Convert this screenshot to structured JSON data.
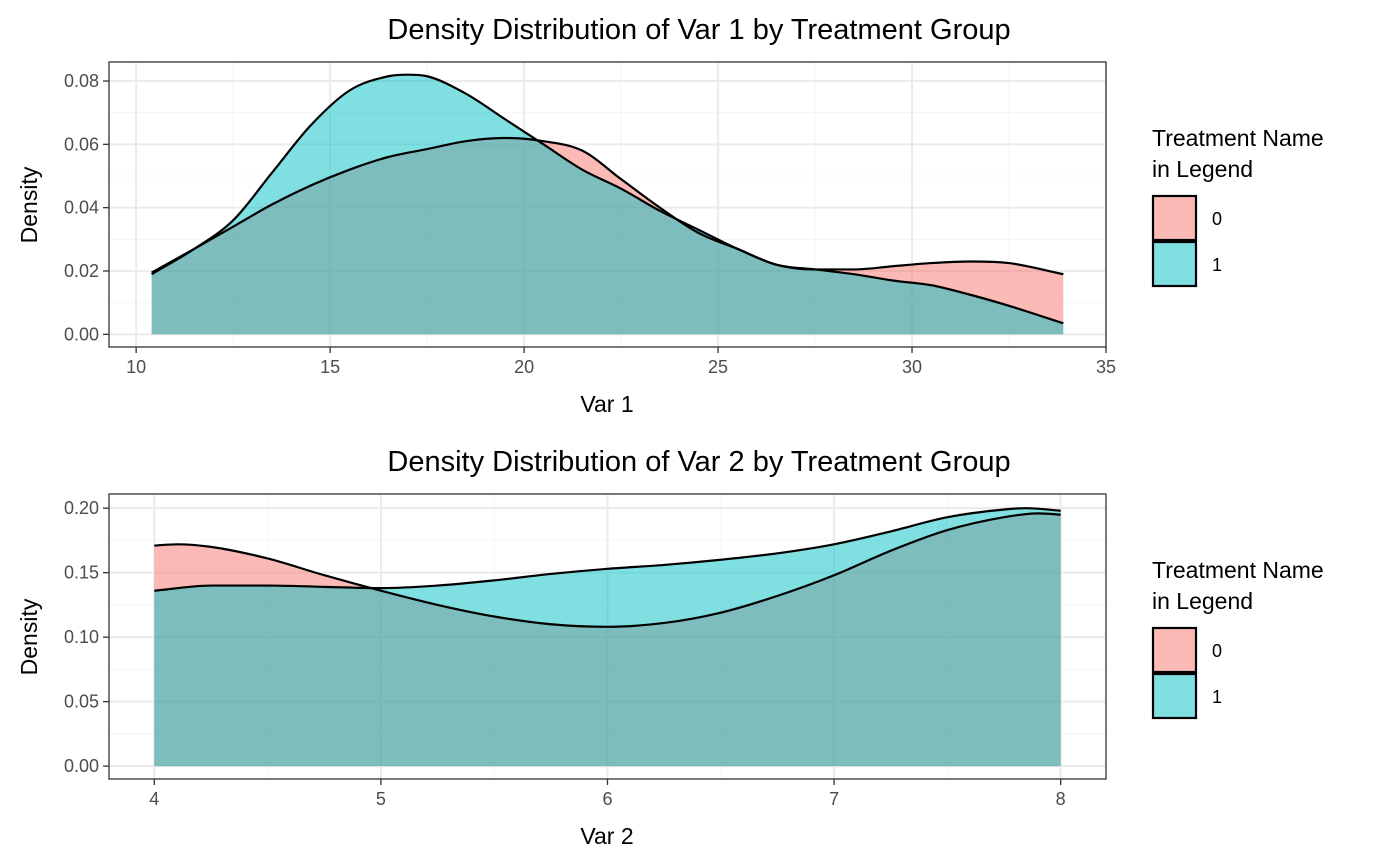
{
  "colors": {
    "group_0": "#F8766D",
    "group_1": "#00BFC4",
    "fill_opacity": 0.5,
    "grid_major": "#ebebeb",
    "grid_minor": "#f4f4f4",
    "panel_border": "#333333",
    "tick_text": "#4d4d4d"
  },
  "chart_data": [
    {
      "type": "area",
      "title": "Density Distribution of Var 1 by Treatment Group",
      "xlabel": "Var 1",
      "ylabel": "Density",
      "xlim": [
        9.3,
        35.0
      ],
      "ylim": [
        -0.004,
        0.086
      ],
      "x_ticks": [
        10,
        15,
        20,
        25,
        30,
        35
      ],
      "x_tick_labels": [
        "10",
        "15",
        "20",
        "25",
        "30",
        "35"
      ],
      "y_ticks": [
        0,
        0.02,
        0.04,
        0.06,
        0.08
      ],
      "y_tick_labels": [
        "0.00",
        "0.02",
        "0.04",
        "0.06",
        "0.08"
      ],
      "grid": true,
      "legend": {
        "title_lines": [
          "Treatment Name",
          "in Legend"
        ],
        "placement": "right"
      },
      "series": [
        {
          "name": "0",
          "x": [
            10.4,
            11.5,
            12.5,
            13.5,
            14.5,
            15.5,
            16.5,
            17.5,
            18.5,
            19.5,
            20.5,
            21.5,
            22.5,
            23.5,
            24.5,
            25.5,
            26.5,
            27.5,
            28.5,
            29.5,
            30.5,
            31.5,
            32.5,
            33.9
          ],
          "values": [
            0.0195,
            0.027,
            0.034,
            0.041,
            0.047,
            0.052,
            0.056,
            0.0585,
            0.061,
            0.062,
            0.061,
            0.058,
            0.049,
            0.04,
            0.032,
            0.027,
            0.022,
            0.0205,
            0.0205,
            0.0215,
            0.0225,
            0.023,
            0.0225,
            0.019
          ]
        },
        {
          "name": "1",
          "x": [
            10.4,
            11.5,
            12.5,
            13.5,
            14.5,
            15.5,
            16.5,
            17.0,
            17.5,
            18.5,
            19.5,
            20.5,
            21.5,
            22.5,
            23.5,
            24.5,
            25.5,
            26.5,
            27.5,
            28.5,
            29.5,
            30.5,
            31.5,
            32.5,
            33.9
          ],
          "values": [
            0.019,
            0.027,
            0.036,
            0.051,
            0.066,
            0.077,
            0.0815,
            0.082,
            0.0815,
            0.076,
            0.068,
            0.06,
            0.052,
            0.046,
            0.039,
            0.033,
            0.027,
            0.022,
            0.0205,
            0.019,
            0.017,
            0.0155,
            0.0125,
            0.009,
            0.0035
          ]
        }
      ]
    },
    {
      "type": "area",
      "title": "Density Distribution of Var 2 by Treatment Group",
      "xlabel": "Var 2",
      "ylabel": "Density",
      "xlim": [
        3.8,
        8.2
      ],
      "ylim": [
        -0.01,
        0.211
      ],
      "x_ticks": [
        4,
        5,
        6,
        7,
        8
      ],
      "x_tick_labels": [
        "4",
        "5",
        "6",
        "7",
        "8"
      ],
      "y_ticks": [
        0,
        0.05,
        0.1,
        0.15,
        0.2
      ],
      "y_tick_labels": [
        "0.00",
        "0.05",
        "0.10",
        "0.15",
        "0.20"
      ],
      "grid": true,
      "legend": {
        "title_lines": [
          "Treatment Name",
          "in Legend"
        ],
        "placement": "right"
      },
      "series": [
        {
          "name": "0",
          "x": [
            4.0,
            4.1,
            4.25,
            4.5,
            4.75,
            5.0,
            5.25,
            5.5,
            5.75,
            6.0,
            6.25,
            6.5,
            6.75,
            7.0,
            7.25,
            7.5,
            7.75,
            7.9,
            8.0
          ],
          "values": [
            0.171,
            0.172,
            0.17,
            0.161,
            0.148,
            0.136,
            0.125,
            0.116,
            0.11,
            0.108,
            0.111,
            0.119,
            0.132,
            0.148,
            0.167,
            0.183,
            0.193,
            0.196,
            0.195
          ]
        },
        {
          "name": "1",
          "x": [
            4.0,
            4.25,
            4.5,
            4.75,
            5.0,
            5.25,
            5.5,
            5.75,
            6.0,
            6.25,
            6.5,
            6.75,
            7.0,
            7.25,
            7.5,
            7.75,
            7.85,
            8.0
          ],
          "values": [
            0.136,
            0.14,
            0.14,
            0.139,
            0.138,
            0.14,
            0.144,
            0.149,
            0.153,
            0.156,
            0.16,
            0.165,
            0.172,
            0.182,
            0.193,
            0.199,
            0.2,
            0.198
          ]
        }
      ]
    }
  ]
}
